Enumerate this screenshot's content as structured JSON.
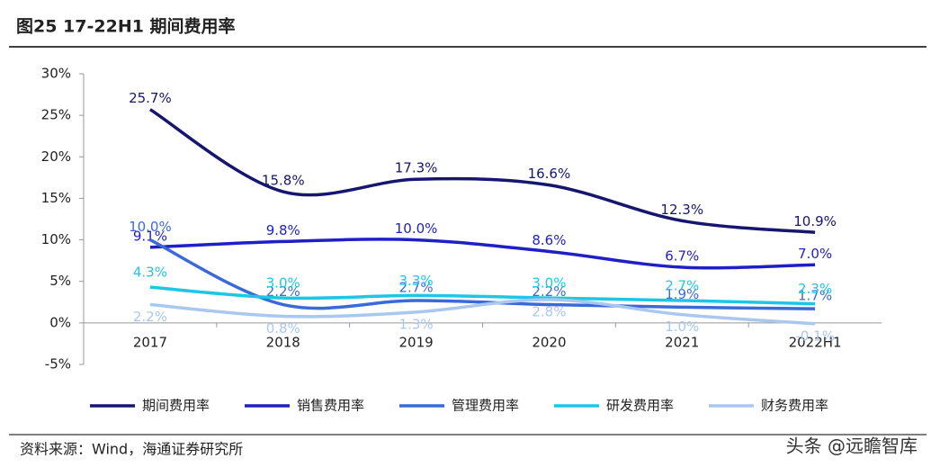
{
  "header": {
    "title": "图25  17-22H1 期间费用率"
  },
  "chart_data": {
    "type": "line",
    "smooth": true,
    "categories": [
      "2017",
      "2018",
      "2019",
      "2020",
      "2021",
      "2022H1"
    ],
    "ylim": [
      -5,
      30
    ],
    "yticks": [
      {
        "value": -5,
        "label": "-5%"
      },
      {
        "value": 0,
        "label": "0%"
      },
      {
        "value": 5,
        "label": "5%"
      },
      {
        "value": 10,
        "label": "10%"
      },
      {
        "value": 15,
        "label": "15%"
      },
      {
        "value": 20,
        "label": "20%"
      },
      {
        "value": 25,
        "label": "25%"
      },
      {
        "value": 30,
        "label": "30%"
      }
    ],
    "legend": "bottom",
    "series": [
      {
        "name": "期间费用率",
        "color": "#16166e",
        "values": [
          25.7,
          15.8,
          17.3,
          16.6,
          12.3,
          10.9
        ],
        "value_labels": [
          "25.7%",
          "15.8%",
          "17.3%",
          "16.6%",
          "12.3%",
          "10.9%"
        ]
      },
      {
        "name": "销售费用率",
        "color": "#1f1fc8",
        "values": [
          9.1,
          9.8,
          10.0,
          8.6,
          6.7,
          7.0
        ],
        "value_labels": [
          "9.1%",
          "9.8%",
          "10.0%",
          "8.6%",
          "6.7%",
          "7.0%"
        ]
      },
      {
        "name": "管理费用率",
        "color": "#3b6ad8",
        "values": [
          10.0,
          2.2,
          2.7,
          2.2,
          1.9,
          1.7
        ],
        "value_labels": [
          "10.0%",
          "2.2%",
          "2.7%",
          "2.2%",
          "1.9%",
          "1.7%"
        ]
      },
      {
        "name": "研发费用率",
        "color": "#1ec6e6",
        "values": [
          4.3,
          3.0,
          3.3,
          3.0,
          2.7,
          2.3
        ],
        "value_labels": [
          "4.3%",
          "3.0%",
          "3.3%",
          "3.0%",
          "2.7%",
          "2.3%"
        ]
      },
      {
        "name": "财务费用率",
        "color": "#a8c8f0",
        "values": [
          2.2,
          0.8,
          1.3,
          2.8,
          1.0,
          -0.1
        ],
        "value_labels": [
          "2.2%",
          "0.8%",
          "1.3%",
          "2.8%",
          "1.0%",
          "-0.1%"
        ]
      }
    ]
  },
  "footer": {
    "source": "资料来源：Wind，海通证券研究所",
    "watermark": "头条 @远瞻智库"
  }
}
